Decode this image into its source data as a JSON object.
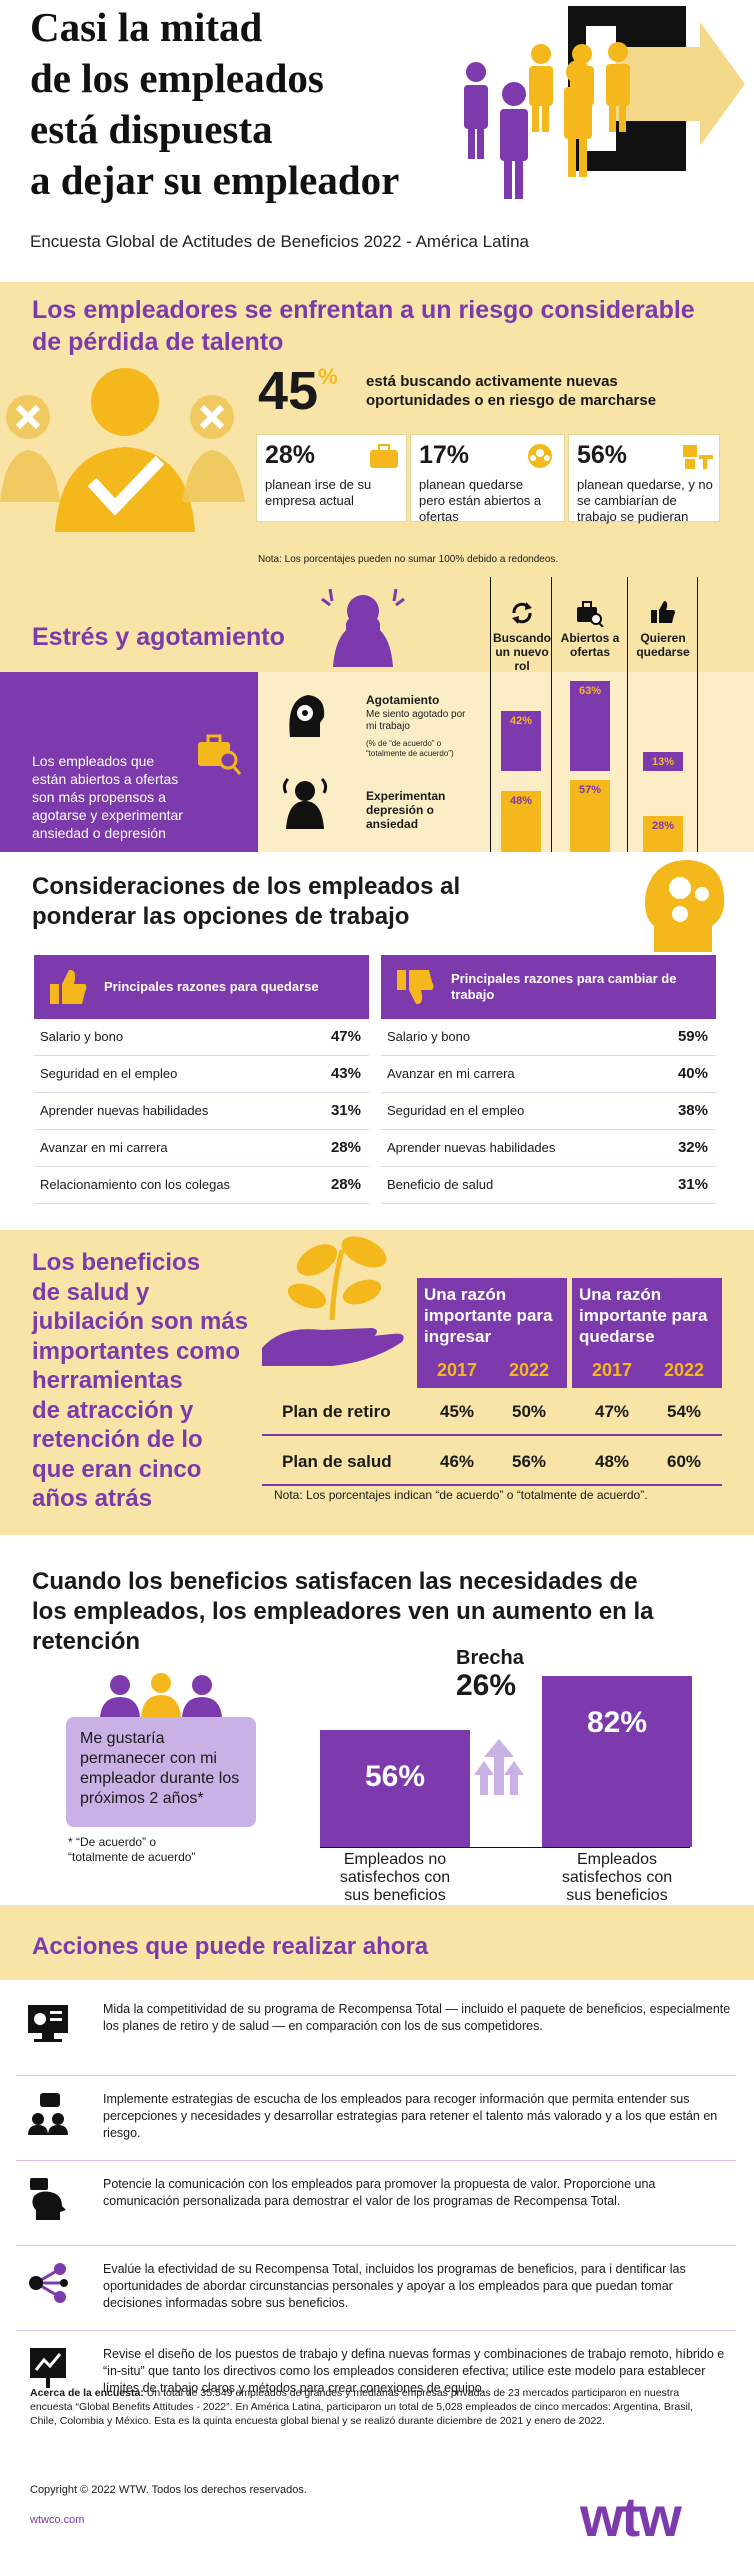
{
  "header": {
    "title_lines": [
      "Casi la mitad",
      "de los empleados",
      "está dispuesta",
      "a dejar su empleador"
    ],
    "subtitle": "Encuesta Global de Actitudes de Beneficios 2022 - América Latina"
  },
  "talent": {
    "heading_lines": [
      "Los empleadores se enfrentan a un riesgo considerable",
      "de pérdida de talento"
    ],
    "big_num": "45",
    "big_pct": "%",
    "big_text_lines": [
      "está buscando activamente nuevas",
      "oportunidades o en riesgo de marcharse"
    ],
    "stats": [
      {
        "num": "28%",
        "text": "planean irse de su empresa actual"
      },
      {
        "num": "17%",
        "text": "planean quedarse pero están abiertos a ofertas"
      },
      {
        "num": "56%",
        "text": "planean quedarse, y no se cambiarían de trabajo se pudieran"
      }
    ],
    "note": "Nota: Los porcentajes pueden no sumar 100% debido a redondeos."
  },
  "stress": {
    "heading": "Estrés y agotamiento",
    "cols": [
      "Buscando un nuevo rol",
      "Abiertos a ofertas",
      "Quieren quedarse"
    ],
    "side_text": "Los empleados que están abiertos a ofertas son más propensos a agotarse y experimentar ansiedad o depresión",
    "rows": [
      {
        "label": "Agotamiento",
        "sub": "Me siento agotado por mi trabajo",
        "note": "(% de “de acuerdo” o “totalmente de acuerdo”)",
        "values": [
          {
            "v": 42,
            "t": "42%"
          },
          {
            "v": 63,
            "t": "63%"
          },
          {
            "v": 13,
            "t": "13%"
          }
        ]
      },
      {
        "label": "Experimentan depresión o ansiedad",
        "values": [
          {
            "v": 48,
            "t": "48%"
          },
          {
            "v": 57,
            "t": "57%"
          },
          {
            "v": 28,
            "t": "28%"
          }
        ]
      }
    ]
  },
  "considerations": {
    "heading_lines": [
      "Consideraciones de los empleados al",
      "ponderar las opciones de trabajo"
    ],
    "stay": {
      "header": "Principales razones para quedarse",
      "rows": [
        [
          "Salario y bono",
          "47%"
        ],
        [
          "Seguridad en el empleo",
          "43%"
        ],
        [
          "Aprender nuevas habilidades",
          "31%"
        ],
        [
          "Avanzar en mi carrera",
          "28%"
        ],
        [
          "Relacionamiento con los colegas",
          "28%"
        ]
      ]
    },
    "change": {
      "header": "Principales razones para cambiar de trabajo",
      "rows": [
        [
          "Salario y bono",
          "59%"
        ],
        [
          "Avanzar en mi carrera",
          "40%"
        ],
        [
          "Seguridad en el empleo",
          "38%"
        ],
        [
          "Aprender nuevas habilidades",
          "32%"
        ],
        [
          "Beneficio de salud",
          "31%"
        ]
      ]
    }
  },
  "benefits": {
    "heading_lines": [
      "Los beneficios",
      "de salud y",
      "jubilación son más",
      "importantes como",
      "herramientas",
      "de atracción y",
      "retención de lo",
      "que eran cinco",
      "años atrás"
    ],
    "group1": "Una razón importante para ingresar",
    "group2": "Una razón importante para quedarse",
    "years": [
      "2017",
      "2022",
      "2017",
      "2022"
    ],
    "rows": [
      {
        "label": "Plan de retiro",
        "values": [
          "45%",
          "50%",
          "47%",
          "54%"
        ]
      },
      {
        "label": "Plan de salud",
        "values": [
          "46%",
          "56%",
          "48%",
          "60%"
        ]
      }
    ],
    "note": "Nota: Los porcentajes indican “de acuerdo” o “totalmente de acuerdo”."
  },
  "retention": {
    "heading_lines": [
      "Cuando los beneficios satisfacen las necesidades de",
      "los empleados, los empleadores ven un aumento en la",
      "retención"
    ],
    "bubble": "Me gustaría permanecer con mi empleador durante los próximos 2 años*",
    "footnote_lines": [
      "* “De acuerdo” o",
      "“totalmente de acuerdo”"
    ],
    "gap_label": "Brecha",
    "gap_value": "26%",
    "bars": [
      {
        "value": 56,
        "text": "56%",
        "label_lines": [
          "Empleados no",
          "satisfechos con",
          "sus beneficios"
        ]
      },
      {
        "value": 82,
        "text": "82%",
        "label_lines": [
          "Empleados",
          "satisfechos con",
          "sus beneficios"
        ]
      }
    ]
  },
  "actions": {
    "heading": "Acciones que puede realizar ahora",
    "items": [
      "Mida la competitividad de su programa de Recompensa Total — incluido el paquete de beneficios, especialmente los planes de retiro y de salud — en comparación con los de sus competidores.",
      "Implemente estrategias de escucha de los empleados para recoger información que permita entender sus percepciones y necesidades y desarrollar estrategias para retener el talento más valorado y a los que están en riesgo.",
      "Potencie la comunicación con los empleados para promover la propuesta de valor. Proporcione una comunicación personalizada para demostrar el valor de los programas de Recompensa Total.",
      "Evalúe la efectividad de su Recompensa Total, incluidos los programas de beneficios, para i dentificar las oportunidades de abordar circunstancias personales y apoyar a los empleados para que puedan tomar decisiones informadas sobre sus beneficios.",
      "Revise el diseño de los puestos de trabajo y defina nuevas formas y combinaciones de trabajo remoto, híbrido e “in-situ” que tanto los directivos como los empleados consideren efectiva; utilice este modelo para establecer límites de trabajo claros y métodos para crear conexiones de equipo."
    ],
    "icons": [
      "dashboard-icon",
      "listening-icon",
      "communication-icon",
      "network-icon",
      "strategy-icon"
    ]
  },
  "footer": {
    "about_label": "Acerca de la encuesta:",
    "about_text": "Un total de 35.549 empleados de grandes y medianas empresas privadas de 23 mercados participaron en nuestra encuesta “Global Benefits Attitudes - 2022”. En América Latina, participaron un total de 5,028 empleados de cinco mercados: Argentina, Brasil, Chile, Colombia y México. Esta es la quinta encuesta global bienal y se realizó durante diciembre de 2021 y enero de 2022.",
    "copyright": "Copyright © 2022 WTW. Todos los derechos reservados.",
    "url": "wtwco.com",
    "logo": "wtw"
  },
  "colors": {
    "purple": "#7c3aad",
    "yellow": "#f5b81c",
    "cream": "#f7e4a6"
  }
}
